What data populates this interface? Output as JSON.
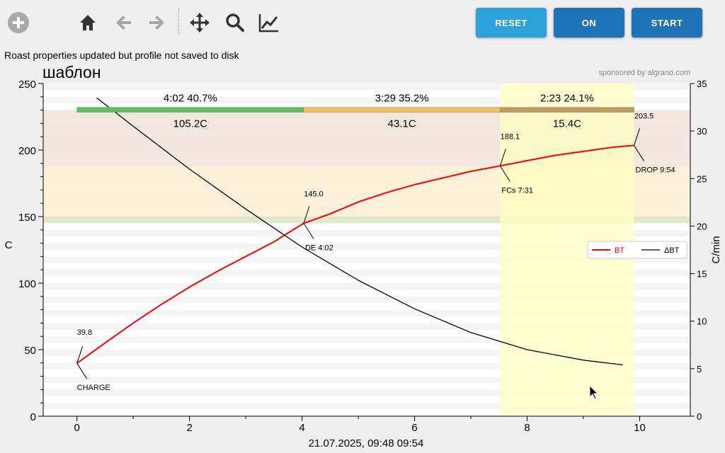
{
  "toolbar": {
    "add_icon": "plus-circle-icon",
    "home_icon": "home-icon",
    "back_icon": "arrow-left-icon",
    "forward_icon": "arrow-right-icon",
    "pan_icon": "move-icon",
    "zoom_icon": "search-icon",
    "subplots_icon": "line-chart-icon",
    "reset_label": "RESET",
    "on_label": "ON",
    "start_label": "START",
    "reset_color": "#2ea0d8",
    "on_color": "#1f73b7",
    "start_color": "#1f73b7"
  },
  "status_message": "Roast properties updated but profile not saved to disk",
  "chart_data": {
    "type": "line",
    "title": "шаблон",
    "sponsor": "sponsored by algrano.com",
    "xlabel": "21.07.2025, 09:48   09:54",
    "ylabel": "C",
    "y2label": "C/min",
    "xlim": [
      -0.6,
      10.9
    ],
    "ylim": [
      0,
      250
    ],
    "y2lim": [
      0,
      35
    ],
    "xticks": [
      0,
      2,
      4,
      6,
      8,
      10
    ],
    "yticks": [
      0,
      50,
      100,
      150,
      200,
      250
    ],
    "y2ticks": [
      0,
      5,
      10,
      15,
      20,
      25,
      30,
      35
    ],
    "legend_position": "right",
    "series": [
      {
        "name": "BT",
        "color": "#ff0000",
        "x": [
          0,
          0.5,
          1,
          1.5,
          2,
          2.5,
          3,
          3.5,
          4.03,
          4.5,
          5,
          5.5,
          6,
          6.5,
          7,
          7.52,
          8,
          8.5,
          9,
          9.5,
          9.9
        ],
        "y": [
          39.8,
          55,
          70,
          84,
          97,
          109,
          120,
          131,
          145.0,
          152,
          161,
          168,
          174,
          179,
          184,
          188.1,
          192,
          196,
          199,
          202,
          203.5
        ]
      },
      {
        "name": "ΔBT",
        "color": "#000000",
        "axis": "right",
        "x": [
          0.35,
          1,
          2,
          3,
          4,
          5,
          6,
          7,
          8,
          9,
          9.7
        ],
        "y": [
          33.5,
          30.5,
          26.0,
          21.8,
          17.8,
          14.3,
          11.3,
          8.8,
          7.0,
          5.9,
          5.4
        ]
      }
    ],
    "phases": [
      {
        "label": "4:02  40.7%",
        "delta": "105.2C",
        "x0": 0,
        "x1": 4.03,
        "color": "#5cbf5c"
      },
      {
        "label": "3:29  35.2%",
        "delta": "43.1C",
        "x0": 4.03,
        "x1": 7.52,
        "color": "#f5c058"
      },
      {
        "label": "2:23  24.1%",
        "delta": "15.4C",
        "x0": 7.52,
        "x1": 9.9,
        "color": "#c09a60"
      }
    ],
    "bands": [
      {
        "y0": 188,
        "y1": 230,
        "color": "#f1e6dc"
      },
      {
        "y0": 150,
        "y1": 188,
        "color": "#fdefd5"
      },
      {
        "y0": 145,
        "y1": 150,
        "color": "#dfe7c6"
      }
    ],
    "highlight": {
      "x0": 7.52,
      "x1": 9.9,
      "color": "#ffffc2"
    },
    "annotations": [
      {
        "label": "CHARGE",
        "value": "39.8",
        "x": 0,
        "y": 39.8,
        "dir": "below"
      },
      {
        "label": "DE 4:02",
        "value": "145.0",
        "x": 4.03,
        "y": 145.0,
        "dir": "below"
      },
      {
        "label": "FCs 7:31",
        "value": "188.1",
        "x": 7.52,
        "y": 188.1,
        "dir": "below"
      },
      {
        "label": "DROP 9:54",
        "value": "203.5",
        "x": 9.9,
        "y": 203.5,
        "dir": "below"
      }
    ]
  }
}
